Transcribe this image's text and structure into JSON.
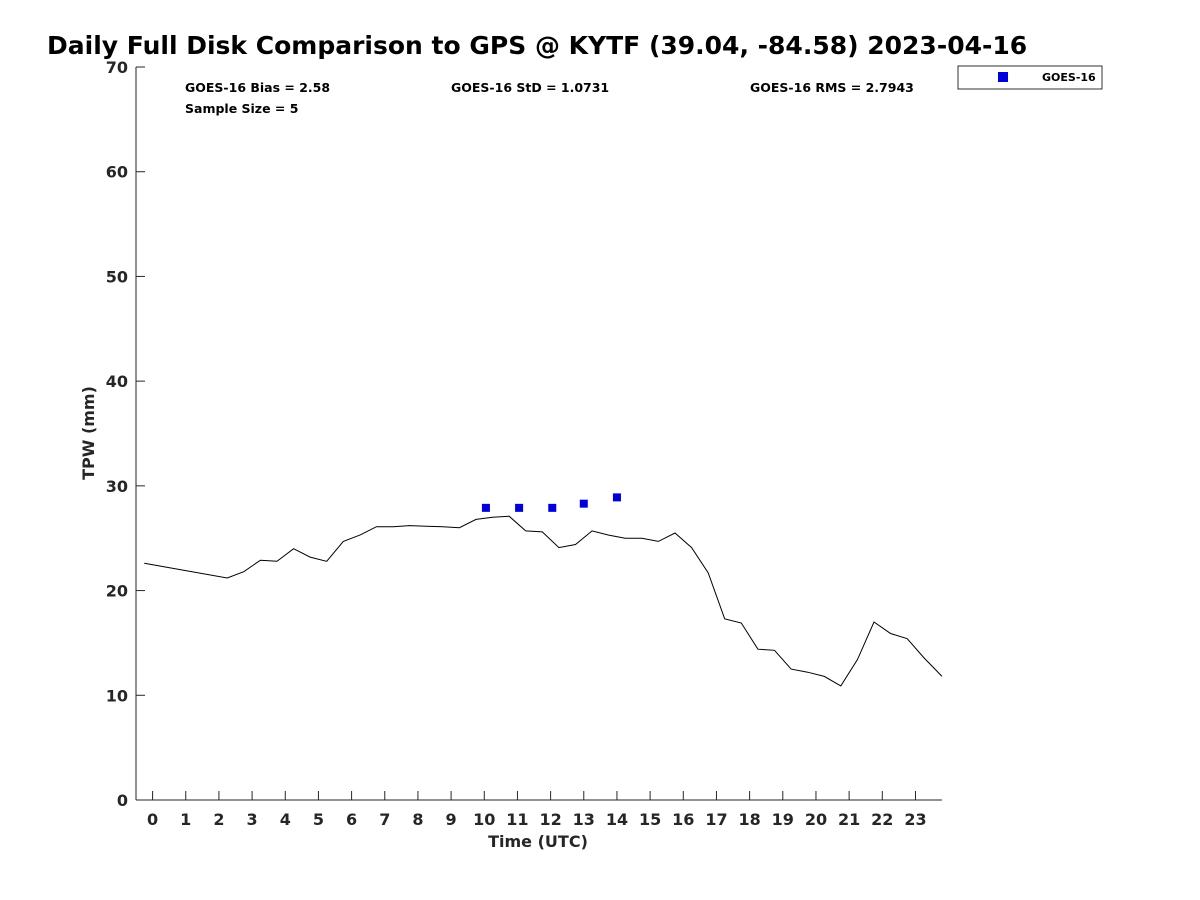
{
  "chart_data": {
    "type": "scatter",
    "title": "Daily Full Disk Comparison to GPS @ KYTF (39.04, -84.58) 2023-04-16",
    "xlabel": "Time (UTC)",
    "ylabel": "TPW (mm)",
    "xlim": [
      -0.5,
      23.8
    ],
    "ylim": [
      0,
      70
    ],
    "xticks": [
      "0",
      "1",
      "2",
      "3",
      "4",
      "5",
      "6",
      "7",
      "8",
      "9",
      "10",
      "11",
      "12",
      "13",
      "14",
      "15",
      "16",
      "17",
      "18",
      "19",
      "20",
      "21",
      "22",
      "23"
    ],
    "yticks": [
      "0",
      "10",
      "20",
      "30",
      "40",
      "50",
      "60",
      "70"
    ],
    "grid": false,
    "legend_position": "outside-top-right",
    "stats": {
      "bias": "GOES-16 Bias = 2.58",
      "std": "GOES-16 StD = 1.0731",
      "rms": "GOES-16 RMS = 2.7943",
      "sample": "Sample Size = 5"
    },
    "series": [
      {
        "name": "GOES-16",
        "kind": "scatter",
        "marker": "square",
        "color": "#0000dd",
        "x": [
          10.05,
          11.05,
          12.05,
          13.0,
          14.0
        ],
        "y": [
          27.9,
          27.9,
          27.9,
          28.3,
          28.9
        ]
      },
      {
        "kind": "line",
        "color": "#000000",
        "x": [
          -0.25,
          2.25,
          2.75,
          3.25,
          3.75,
          4.25,
          4.75,
          5.25,
          5.75,
          6.25,
          6.75,
          7.25,
          7.75,
          8.25,
          8.75,
          9.25,
          9.75,
          10.25,
          10.75,
          11.25,
          11.75,
          12.25,
          12.75,
          13.25,
          13.75,
          14.25,
          14.75,
          15.25,
          15.75,
          16.25,
          16.75,
          17.25,
          17.75,
          18.25,
          18.75,
          19.25,
          19.75,
          20.25,
          20.75,
          21.25,
          21.75,
          22.25,
          22.75,
          23.25,
          23.8
        ],
        "y": [
          22.6,
          21.2,
          21.8,
          22.9,
          22.8,
          24.0,
          23.2,
          22.8,
          24.7,
          25.3,
          26.1,
          26.1,
          26.2,
          26.15,
          26.1,
          26.0,
          26.8,
          27.0,
          27.1,
          25.7,
          25.6,
          24.1,
          24.4,
          25.7,
          25.3,
          25.0,
          25.0,
          24.7,
          25.5,
          24.1,
          21.7,
          17.3,
          16.9,
          14.4,
          14.3,
          12.5,
          12.2,
          11.8,
          10.9,
          13.4,
          17.0,
          15.9,
          15.4,
          13.6,
          11.8
        ]
      }
    ]
  },
  "colors": {
    "goes": "#0000dd",
    "gps_line": "#000000",
    "axis": "#262626"
  }
}
